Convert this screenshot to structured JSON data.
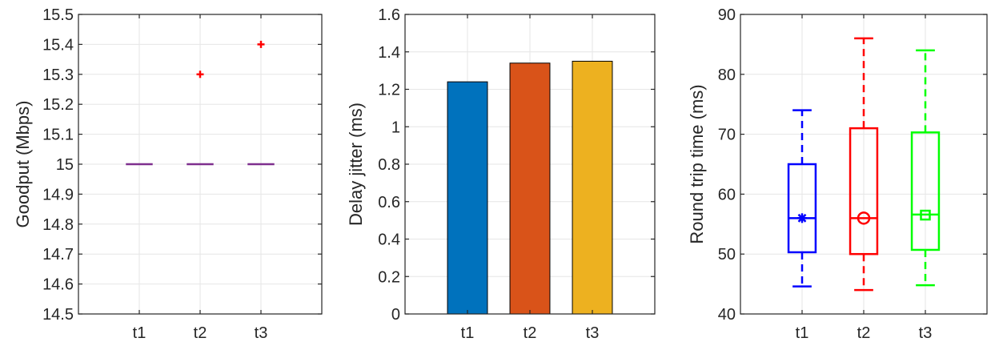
{
  "chart_data": [
    {
      "type": "box",
      "ylabel": "Goodput (Mbps)",
      "categories": [
        "t1",
        "t2",
        "t3"
      ],
      "ylim": [
        14.5,
        15.5
      ],
      "yticks": [
        14.5,
        14.6,
        14.7,
        14.8,
        14.9,
        15,
        15.1,
        15.2,
        15.3,
        15.4,
        15.5
      ],
      "ytick_labels": [
        "14.5",
        "14.6",
        "14.7",
        "14.8",
        "14.9",
        "15",
        "15.1",
        "15.2",
        "15.3",
        "15.4",
        "15.5"
      ],
      "grid": true,
      "box_color": "#7e2f8e",
      "outlier_color": "#ff0000",
      "boxes": [
        {
          "category": "t1",
          "median": 15,
          "q1": 15,
          "q3": 15,
          "whisker_low": 15,
          "whisker_high": 15,
          "outliers": []
        },
        {
          "category": "t2",
          "median": 15,
          "q1": 15,
          "q3": 15,
          "whisker_low": 15,
          "whisker_high": 15,
          "outliers": [
            15.3
          ]
        },
        {
          "category": "t3",
          "median": 15,
          "q1": 15,
          "q3": 15,
          "whisker_low": 15,
          "whisker_high": 15,
          "outliers": [
            15.4
          ]
        }
      ]
    },
    {
      "type": "bar",
      "ylabel": "Delay jitter (ms)",
      "categories": [
        "t1",
        "t2",
        "t3"
      ],
      "values": [
        1.24,
        1.34,
        1.35
      ],
      "colors": [
        "#0072bd",
        "#d95319",
        "#edb120"
      ],
      "ylim": [
        0,
        1.6
      ],
      "yticks": [
        0,
        0.2,
        0.4,
        0.6,
        0.8,
        1,
        1.2,
        1.4,
        1.6
      ],
      "ytick_labels": [
        "0",
        "0.2",
        "0.4",
        "0.6",
        "0.8",
        "1",
        "1.2",
        "1.4",
        "1.6"
      ],
      "grid": true
    },
    {
      "type": "box",
      "ylabel": "Round trip time (ms)",
      "categories": [
        "t1",
        "t2",
        "t3"
      ],
      "ylim": [
        40,
        90
      ],
      "yticks": [
        40,
        50,
        60,
        70,
        80,
        90
      ],
      "ytick_labels": [
        "40",
        "50",
        "60",
        "70",
        "80",
        "90"
      ],
      "grid": true,
      "boxes": [
        {
          "category": "t1",
          "color": "#0000ff",
          "whisker_low": 44.6,
          "q1": 50.3,
          "median": 56,
          "q3": 65,
          "whisker_high": 74,
          "mean": 56,
          "mean_marker": "asterisk"
        },
        {
          "category": "t2",
          "color": "#ff0000",
          "whisker_low": 44,
          "q1": 50,
          "median": 56,
          "q3": 71,
          "whisker_high": 86,
          "mean": 56,
          "mean_marker": "circle"
        },
        {
          "category": "t3",
          "color": "#00ff00",
          "whisker_low": 44.8,
          "q1": 50.7,
          "median": 56.6,
          "q3": 70.3,
          "whisker_high": 84,
          "mean": 56.5,
          "mean_marker": "square"
        }
      ]
    }
  ]
}
